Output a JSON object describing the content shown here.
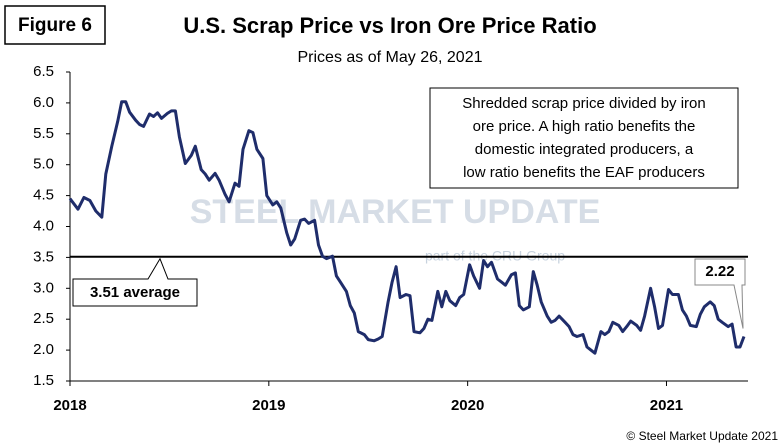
{
  "chart_data": {
    "type": "line",
    "badge": "Figure 6",
    "title": "U.S. Scrap Price vs Iron Ore Price Ratio",
    "subtitle": "Prices as of May 26, 2021",
    "note": [
      "Shredded scrap price divided by iron",
      "ore price. A high ratio benefits the",
      "domestic integrated producers, a",
      "low ratio benefits the EAF producers"
    ],
    "watermark": [
      "STEEL MARKET UPDATE",
      "part of the CRU Group"
    ],
    "copyright": "© Steel Market Update 2021",
    "reference_line": {
      "value": 3.51,
      "label": "3.51 average"
    },
    "end_label": "2.22",
    "xlim": [
      2018,
      2021.41
    ],
    "xticks": [
      2018,
      2019,
      2020,
      2021
    ],
    "ylim": [
      1.5,
      6.5
    ],
    "yticks": [
      {
        "value": 1.5,
        "label": "1.5"
      },
      {
        "value": 2,
        "label": "2.0"
      },
      {
        "value": 2.5,
        "label": "2.5"
      },
      {
        "value": 3,
        "label": "3.0"
      },
      {
        "value": 3.5,
        "label": "3.5"
      },
      {
        "value": 4,
        "label": "4.0"
      },
      {
        "value": 4.5,
        "label": "4.5"
      },
      {
        "value": 5,
        "label": "5.0"
      },
      {
        "value": 5.5,
        "label": "5.5"
      },
      {
        "value": 6,
        "label": "6.0"
      },
      {
        "value": 6.5,
        "label": "6.5"
      }
    ],
    "grid": false,
    "x": [
      2018.0,
      2018.04,
      2018.07,
      2018.1,
      2018.13,
      2018.16,
      2018.18,
      2018.21,
      2018.24,
      2018.26,
      2018.28,
      2018.3,
      2018.33,
      2018.35,
      2018.37,
      2018.4,
      2018.42,
      2018.44,
      2018.46,
      2018.49,
      2018.51,
      2018.53,
      2018.55,
      2018.58,
      2018.61,
      2018.63,
      2018.66,
      2018.68,
      2018.7,
      2018.73,
      2018.75,
      2018.78,
      2018.8,
      2018.83,
      2018.85,
      2018.87,
      2018.9,
      2018.92,
      2018.94,
      2018.97,
      2018.99,
      2019.02,
      2019.04,
      2019.06,
      2019.09,
      2019.11,
      2019.13,
      2019.16,
      2019.18,
      2019.2,
      2019.23,
      2019.25,
      2019.27,
      2019.29,
      2019.32,
      2019.34,
      2019.36,
      2019.39,
      2019.41,
      2019.43,
      2019.45,
      2019.48,
      2019.5,
      2019.53,
      2019.55,
      2019.57,
      2019.6,
      2019.62,
      2019.64,
      2019.66,
      2019.69,
      2019.71,
      2019.73,
      2019.76,
      2019.78,
      2019.8,
      2019.82,
      2019.85,
      2019.87,
      2019.89,
      2019.91,
      2019.94,
      2019.96,
      2019.98,
      2020.01,
      2020.03,
      2020.06,
      2020.08,
      2020.1,
      2020.12,
      2020.15,
      2020.17,
      2020.19,
      2020.22,
      2020.24,
      2020.26,
      2020.28,
      2020.31,
      2020.33,
      2020.35,
      2020.37,
      2020.4,
      2020.42,
      2020.44,
      2020.46,
      2020.49,
      2020.51,
      2020.53,
      2020.55,
      2020.58,
      2020.6,
      2020.62,
      2020.64,
      2020.67,
      2020.69,
      2020.71,
      2020.73,
      2020.76,
      2020.78,
      2020.8,
      2020.82,
      2020.85,
      2020.87,
      2020.89,
      2020.92,
      2020.94,
      2020.96,
      2020.98,
      2021.01,
      2021.03,
      2021.06,
      2021.08,
      2021.1,
      2021.12,
      2021.15,
      2021.17,
      2021.19,
      2021.22,
      2021.24,
      2021.26,
      2021.28,
      2021.31,
      2021.33,
      2021.35,
      2021.37,
      2021.39
    ],
    "series": [
      {
        "name": "Scrap / iron ore ratio",
        "color": "#1f2d6b",
        "values": [
          4.45,
          4.28,
          4.47,
          4.42,
          4.25,
          4.15,
          4.85,
          5.3,
          5.7,
          6.02,
          6.02,
          5.85,
          5.72,
          5.65,
          5.62,
          5.82,
          5.78,
          5.84,
          5.75,
          5.83,
          5.87,
          5.87,
          5.45,
          5.02,
          5.15,
          5.3,
          4.92,
          4.85,
          4.75,
          4.86,
          4.75,
          4.52,
          4.4,
          4.7,
          4.65,
          5.25,
          5.55,
          5.52,
          5.25,
          5.1,
          4.5,
          4.35,
          4.4,
          4.3,
          3.9,
          3.7,
          3.8,
          4.1,
          4.12,
          4.05,
          4.1,
          3.7,
          3.52,
          3.48,
          3.52,
          3.2,
          3.1,
          2.95,
          2.72,
          2.6,
          2.3,
          2.25,
          2.17,
          2.15,
          2.18,
          2.22,
          2.78,
          3.1,
          3.35,
          2.85,
          2.9,
          2.88,
          2.3,
          2.28,
          2.35,
          2.5,
          2.48,
          2.95,
          2.7,
          2.95,
          2.8,
          2.72,
          2.85,
          2.9,
          3.38,
          3.2,
          3.0,
          3.45,
          3.35,
          3.42,
          3.15,
          3.1,
          3.05,
          3.22,
          3.25,
          2.72,
          2.65,
          2.7,
          3.27,
          3.05,
          2.78,
          2.55,
          2.45,
          2.48,
          2.55,
          2.45,
          2.38,
          2.25,
          2.22,
          2.25,
          2.05,
          2.0,
          1.95,
          2.3,
          2.25,
          2.3,
          2.45,
          2.4,
          2.3,
          2.38,
          2.47,
          2.4,
          2.32,
          2.55,
          3.0,
          2.7,
          2.35,
          2.4,
          2.98,
          2.9,
          2.9,
          2.65,
          2.55,
          2.4,
          2.38,
          2.58,
          2.7,
          2.78,
          2.72,
          2.5,
          2.45,
          2.38,
          2.42,
          2.05,
          2.05,
          2.22
        ]
      }
    ]
  }
}
